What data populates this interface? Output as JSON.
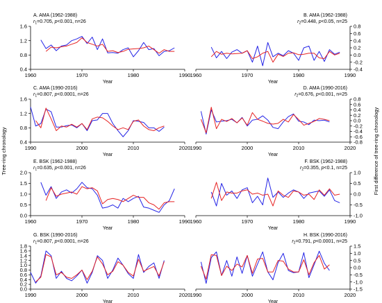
{
  "figure": {
    "left_ylabel": "Tree-ring chronology",
    "right_ylabel": "First difference of tree-ring chronology"
  },
  "colors": {
    "blue": "#2323e6",
    "red": "#e62323"
  },
  "chart_data": [
    {
      "type": "line",
      "title": "A. AMA (1962-1988)",
      "stat": {
        "r": "r",
        "sub": "1",
        "mid": "=0.705, ",
        "p": "p",
        "tail": "<0.001, n=26"
      },
      "xlabel": "Year",
      "xlim": [
        1960,
        1990
      ],
      "ylim": [
        0.4,
        1.6
      ],
      "xticks": [
        1960,
        1970,
        1980,
        1990
      ],
      "yticks": [
        0.4,
        0.8,
        1.2,
        1.6
      ],
      "ytick_labels": [
        "0.4",
        "0.8",
        "1.2",
        "1.6"
      ],
      "yaxis": "left",
      "title_align": "left",
      "x": [
        1962,
        1963,
        1964,
        1965,
        1966,
        1967,
        1968,
        1969,
        1970,
        1971,
        1972,
        1973,
        1974,
        1975,
        1976,
        1977,
        1978,
        1979,
        1980,
        1981,
        1982,
        1983,
        1984,
        1985,
        1986,
        1987,
        1988
      ],
      "series": [
        {
          "color": "blue",
          "values": [
            1.22,
            0.98,
            1.08,
            0.92,
            1.05,
            1.08,
            1.2,
            1.25,
            1.32,
            1.12,
            1.3,
            0.95,
            1.25,
            0.86,
            0.87,
            0.85,
            0.95,
            1.0,
            0.75,
            0.92,
            1.15,
            0.95,
            0.98,
            0.78,
            0.9,
            0.92,
            1.0
          ]
        },
        {
          "color": "red",
          "values": [
            null,
            0.9,
            1.02,
            1.0,
            1.03,
            1.05,
            1.1,
            1.15,
            1.28,
            1.15,
            1.1,
            1.05,
            1.1,
            0.9,
            0.92,
            0.87,
            0.9,
            0.96,
            0.97,
            0.98,
            1.0,
            1.05,
            0.95,
            0.85,
            0.95,
            0.9,
            0.9
          ]
        }
      ]
    },
    {
      "type": "line",
      "title": "B. AMA (1962-1988)",
      "stat": {
        "r": "r",
        "sub": "2",
        "mid": "=0.448, ",
        "p": "p",
        "tail": "<0.05, n=25"
      },
      "xlabel": "Year",
      "xlim": [
        1960,
        1990
      ],
      "ylim": [
        -0.4,
        0.8
      ],
      "xticks": [
        1960,
        1970,
        1980,
        1990
      ],
      "yticks": [
        -0.4,
        -0.2,
        0.0,
        0.2,
        0.4,
        0.6,
        0.8
      ],
      "ytick_labels": [
        "-0.4",
        "-0.2",
        "0.0",
        "0.2",
        "0.4",
        "0.6",
        "0.8"
      ],
      "yaxis": "right",
      "title_align": "right",
      "x": [
        1963,
        1964,
        1965,
        1966,
        1967,
        1968,
        1969,
        1970,
        1971,
        1972,
        1973,
        1974,
        1975,
        1976,
        1977,
        1978,
        1979,
        1980,
        1981,
        1982,
        1983,
        1984,
        1985,
        1986,
        1987,
        1988
      ],
      "series": [
        {
          "color": "blue",
          "values": [
            0.22,
            -0.08,
            0.1,
            -0.1,
            0.08,
            0.15,
            0.05,
            0.12,
            -0.2,
            0.25,
            -0.3,
            0.35,
            -0.05,
            0.05,
            -0.02,
            0.12,
            0.05,
            -0.15,
            0.2,
            0.25,
            -0.15,
            0.1,
            -0.18,
            0.15,
            0.02,
            0.08
          ]
        },
        {
          "color": "red",
          "values": [
            -0.05,
            0.1,
            0.02,
            0.05,
            0.03,
            0.04,
            0.05,
            0.12,
            -0.1,
            -0.05,
            0.05,
            0.1,
            -0.2,
            0.02,
            -0.04,
            0.05,
            0.06,
            0.01,
            0.02,
            0.05,
            0.05,
            -0.08,
            -0.1,
            0.1,
            0.0,
            0.05
          ]
        }
      ]
    },
    {
      "type": "line",
      "title": "C. AMA (1990-2016)",
      "stat": {
        "r": "r",
        "sub": "1",
        "mid": "=0.807, ",
        "p": "p",
        "tail": "<0.0001, n=26"
      },
      "xlabel": "Year",
      "xlim": [
        1990,
        2020
      ],
      "ylim": [
        0.4,
        1.6
      ],
      "xticks": [
        1990,
        2000,
        2010,
        2020
      ],
      "yticks": [
        0.4,
        0.8,
        1.2,
        1.6
      ],
      "ytick_labels": [
        "0.4",
        "0.8",
        "1.2",
        "1.6"
      ],
      "yaxis": "left",
      "title_align": "left",
      "x": [
        1990,
        1991,
        1992,
        1993,
        1994,
        1995,
        1996,
        1997,
        1998,
        1999,
        2000,
        2001,
        2002,
        2003,
        2004,
        2005,
        2006,
        2007,
        2008,
        2009,
        2010,
        2011,
        2012,
        2013,
        2014,
        2015,
        2016
      ],
      "series": [
        {
          "color": "blue",
          "values": [
            1.38,
            0.85,
            0.92,
            1.32,
            1.25,
            0.82,
            0.82,
            0.86,
            0.88,
            0.8,
            0.92,
            0.72,
            1.0,
            1.02,
            1.2,
            1.2,
            0.92,
            0.72,
            0.55,
            0.72,
            1.0,
            0.98,
            0.95,
            0.8,
            0.8,
            0.7,
            0.82
          ]
        },
        {
          "color": "red",
          "values": [
            null,
            1.0,
            0.8,
            1.35,
            1.05,
            0.72,
            0.85,
            0.82,
            0.9,
            0.82,
            0.92,
            0.75,
            1.05,
            1.1,
            1.08,
            0.98,
            0.85,
            0.75,
            0.8,
            0.75,
            0.98,
            1.02,
            0.85,
            0.75,
            0.72,
            0.8,
            0.85
          ]
        }
      ]
    },
    {
      "type": "line",
      "title": "D. AMA (1990-2016)",
      "stat": {
        "r": "r",
        "sub": "2",
        "mid": "=0.676, ",
        "p": "p",
        "tail": "<0.001, n=25"
      },
      "xlabel": "Year",
      "xlim": [
        1990,
        2020
      ],
      "ylim": [
        -0.8,
        0.8
      ],
      "xticks": [
        1990,
        2000,
        2010,
        2020
      ],
      "yticks": [
        -0.8,
        -0.6,
        -0.4,
        -0.2,
        0.0,
        0.2,
        0.4,
        0.6,
        0.8
      ],
      "ytick_labels": [
        "-0.8",
        "-0.6",
        "-0.4",
        "-0.2",
        "0.0",
        "0.2",
        "0.4",
        "0.6",
        "0.8"
      ],
      "yaxis": "right",
      "title_align": "right",
      "x": [
        1991,
        1992,
        1993,
        1994,
        1995,
        1996,
        1997,
        1998,
        1999,
        2000,
        2001,
        2002,
        2003,
        2004,
        2005,
        2006,
        2007,
        2008,
        2009,
        2010,
        2011,
        2012,
        2013,
        2014,
        2015,
        2016
      ],
      "series": [
        {
          "color": "blue",
          "values": [
            0.35,
            -0.5,
            0.4,
            -0.05,
            -0.02,
            0.0,
            0.05,
            -0.08,
            0.12,
            -0.2,
            0.02,
            0.05,
            0.18,
            0.02,
            -0.25,
            -0.3,
            -0.05,
            0.15,
            0.25,
            -0.02,
            -0.05,
            -0.15,
            0.02,
            0.0,
            0.02,
            -0.05
          ]
        },
        {
          "color": "red",
          "values": [
            0.05,
            -0.45,
            0.5,
            -0.3,
            0.05,
            -0.03,
            0.08,
            -0.08,
            0.1,
            -0.17,
            0.3,
            0.05,
            -0.02,
            -0.1,
            -0.13,
            -0.1,
            0.05,
            -0.05,
            0.23,
            0.04,
            -0.17,
            -0.1,
            -0.03,
            0.08,
            0.05,
            0.0
          ]
        }
      ]
    },
    {
      "type": "line",
      "title": "E. BSK (1962-1988)",
      "stat": {
        "r": "r",
        "sub": "1",
        "mid": "=0.635, ",
        "p": "p",
        "tail": "<0.001, n=26"
      },
      "xlabel": "Year",
      "xlim": [
        1960,
        1990
      ],
      "ylim": [
        0.0,
        2.0
      ],
      "xticks": [
        1960,
        1970,
        1980,
        1990
      ],
      "yticks": [
        0.0,
        0.5,
        1.0,
        1.5,
        2.0
      ],
      "ytick_labels": [
        "0.0",
        "0.5",
        "1.0",
        "1.5",
        "2.0"
      ],
      "yaxis": "left",
      "title_align": "left",
      "x": [
        1962,
        1963,
        1964,
        1965,
        1966,
        1967,
        1968,
        1969,
        1970,
        1971,
        1972,
        1973,
        1974,
        1975,
        1976,
        1977,
        1978,
        1979,
        1980,
        1981,
        1982,
        1983,
        1984,
        1985,
        1986,
        1987,
        1988
      ],
      "series": [
        {
          "color": "blue",
          "values": [
            1.55,
            0.95,
            1.35,
            0.8,
            1.1,
            1.2,
            1.05,
            1.25,
            1.55,
            1.3,
            1.25,
            0.95,
            0.35,
            0.4,
            0.5,
            0.35,
            0.8,
            0.65,
            0.8,
            0.9,
            0.4,
            0.35,
            0.25,
            0.15,
            0.5,
            0.7,
            1.25
          ]
        },
        {
          "color": "red",
          "values": [
            null,
            0.7,
            1.3,
            0.9,
            1.0,
            1.05,
            1.1,
            1.0,
            1.35,
            1.25,
            1.3,
            1.15,
            0.55,
            0.75,
            0.8,
            0.75,
            0.65,
            0.8,
            0.95,
            0.85,
            0.85,
            0.6,
            0.5,
            0.3,
            0.6,
            0.65,
            0.65
          ]
        }
      ]
    },
    {
      "type": "line",
      "title": "F. BSK (1962-1988)",
      "stat": {
        "r": "r",
        "sub": "2",
        "mid": "=0.355, ",
        "p": "p",
        "tail": "<0.1, n=25"
      },
      "xlabel": "Year",
      "xlim": [
        1960,
        1990
      ],
      "ylim": [
        -1.0,
        1.0
      ],
      "xticks": [
        1960,
        1970,
        1980,
        1990
      ],
      "yticks": [
        -1.0,
        -0.5,
        0.0,
        0.5,
        1.0
      ],
      "ytick_labels": [
        "-1.0",
        "-0.5",
        "0.0",
        "0.5",
        "1.0"
      ],
      "yaxis": "right",
      "title_align": "right",
      "x": [
        1963,
        1964,
        1965,
        1966,
        1967,
        1968,
        1969,
        1970,
        1971,
        1972,
        1973,
        1974,
        1975,
        1976,
        1977,
        1978,
        1979,
        1980,
        1981,
        1982,
        1983,
        1984,
        1985,
        1986,
        1987,
        1988
      ],
      "series": [
        {
          "color": "blue",
          "values": [
            0.1,
            -0.55,
            0.5,
            -0.05,
            0.15,
            -0.2,
            0.2,
            0.3,
            -0.4,
            -0.1,
            -0.5,
            0.75,
            -0.15,
            0.1,
            -0.15,
            0.05,
            0.2,
            0.1,
            -0.2,
            0.05,
            0.1,
            0.15,
            -0.1,
            0.2,
            -0.3,
            -0.4
          ]
        },
        {
          "color": "red",
          "values": [
            -0.2,
            0.55,
            -0.3,
            0.1,
            0.05,
            0.05,
            0.15,
            0.2,
            0.0,
            0.05,
            -0.05,
            0.0,
            -0.55,
            0.15,
            -0.05,
            -0.15,
            0.15,
            0.1,
            -0.05,
            0.0,
            -0.25,
            0.2,
            -0.05,
            0.25,
            -0.05,
            0.0
          ]
        }
      ]
    },
    {
      "type": "line",
      "title": "G. BSK (1990-2016)",
      "stat": {
        "r": "r",
        "sub": "1",
        "mid": "=0.807, ",
        "p": "p",
        "tail": "<0.0001, n=26"
      },
      "xlabel": "Year",
      "xlim": [
        1990,
        2020
      ],
      "ylim": [
        0.0,
        1.8
      ],
      "xticks": [
        1990,
        2000,
        2010,
        2020
      ],
      "yticks": [
        0.0,
        0.2,
        0.4,
        0.6,
        0.8,
        1.0,
        1.2,
        1.4,
        1.6,
        1.8
      ],
      "ytick_labels": [
        "0.0",
        "0.2",
        "0.4",
        "0.6",
        "0.8",
        "1.0",
        "1.2",
        "1.4",
        "1.6",
        "1.8"
      ],
      "yaxis": "left",
      "title_align": "left",
      "x": [
        1990,
        1991,
        1992,
        1993,
        1994,
        1995,
        1996,
        1997,
        1998,
        1999,
        2000,
        2001,
        2002,
        2003,
        2004,
        2005,
        2006,
        2007,
        2008,
        2009,
        2010,
        2011,
        2012,
        2013,
        2014,
        2015,
        2016
      ],
      "series": [
        {
          "color": "blue",
          "values": [
            0.7,
            0.25,
            0.55,
            1.6,
            1.4,
            0.45,
            0.75,
            0.45,
            0.35,
            0.55,
            0.8,
            0.25,
            0.7,
            1.4,
            1.2,
            0.45,
            0.8,
            1.3,
            1.0,
            0.65,
            0.45,
            1.45,
            0.7,
            0.95,
            1.1,
            0.45,
            1.2
          ]
        },
        {
          "color": "red",
          "values": [
            null,
            0.3,
            0.5,
            1.45,
            1.35,
            0.6,
            0.7,
            0.5,
            0.45,
            0.6,
            0.8,
            0.4,
            0.75,
            1.35,
            1.05,
            0.6,
            0.75,
            1.15,
            1.0,
            0.7,
            0.55,
            1.25,
            0.75,
            0.85,
            0.95,
            0.55,
            1.15
          ]
        }
      ]
    },
    {
      "type": "line",
      "title": "H. BSK (1990-2016)",
      "stat": {
        "r": "r",
        "sub": "2",
        "mid": "=0.791, ",
        "p": "p",
        "tail": "<0.0001, n=25"
      },
      "xlabel": "Year",
      "xlim": [
        1990,
        2020
      ],
      "ylim": [
        -1.5,
        1.5
      ],
      "xticks": [
        1990,
        2000,
        2010,
        2020
      ],
      "yticks": [
        -1.5,
        -1.0,
        -0.5,
        0.0,
        0.5,
        1.0,
        1.5
      ],
      "ytick_labels": [
        "-1.5",
        "-1.0",
        "-0.5",
        "0.0",
        "0.5",
        "1.0",
        "1.5"
      ],
      "yaxis": "right",
      "title_align": "right",
      "x": [
        1991,
        1992,
        1993,
        1994,
        1995,
        1996,
        1997,
        1998,
        1999,
        2000,
        2001,
        2002,
        2003,
        2004,
        2005,
        2006,
        2007,
        2008,
        2009,
        2010,
        2011,
        2012,
        2013,
        2014,
        2015,
        2016
      ],
      "series": [
        {
          "color": "blue",
          "values": [
            0.4,
            -1.1,
            0.7,
            1.1,
            -0.55,
            0.5,
            -0.6,
            0.75,
            -0.4,
            0.85,
            -0.6,
            0.25,
            1.1,
            -0.3,
            -0.85,
            0.35,
            1.0,
            -0.2,
            -0.35,
            -0.3,
            1.05,
            -0.7,
            0.2,
            1.15,
            0.3,
            -0.2
          ]
        },
        {
          "color": "red",
          "values": [
            0.1,
            -0.8,
            0.9,
            0.85,
            -0.55,
            0.1,
            -0.2,
            0.25,
            0.05,
            0.85,
            -0.4,
            0.6,
            0.65,
            -0.3,
            -0.3,
            0.5,
            0.45,
            -0.1,
            -0.3,
            -0.3,
            0.55,
            -0.5,
            0.35,
            0.85,
            -0.1,
            0.2
          ]
        }
      ]
    }
  ]
}
